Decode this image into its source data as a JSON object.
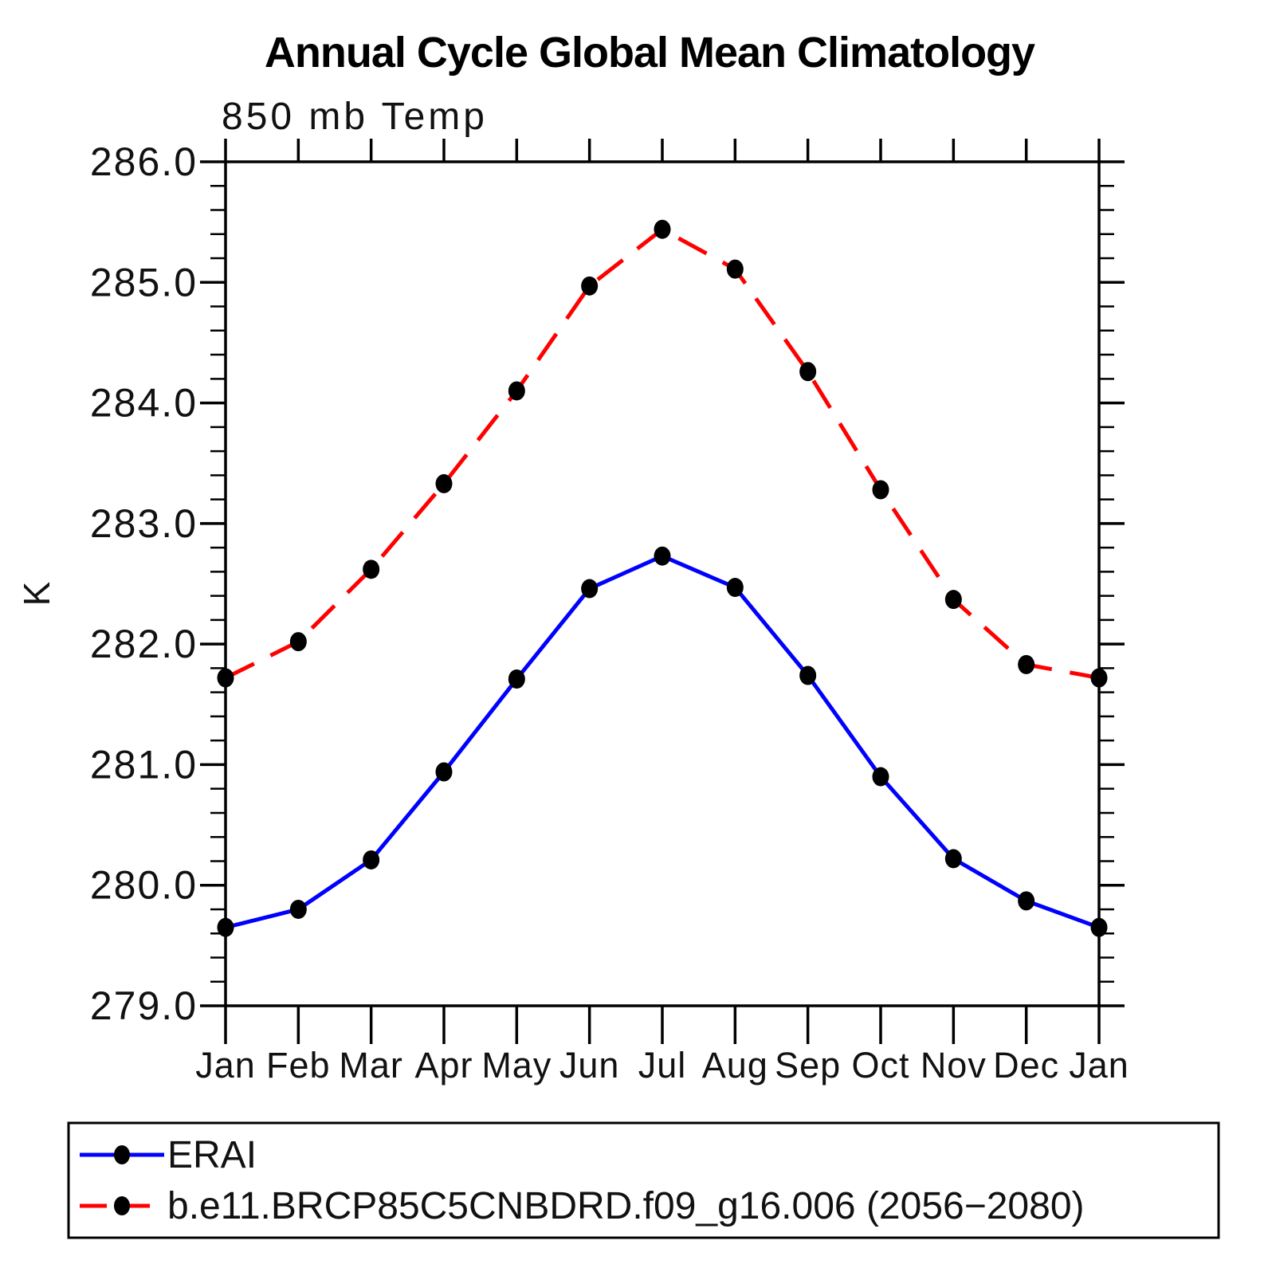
{
  "title": "Annual Cycle Global Mean Climatology",
  "subtitle": "850 mb Temp",
  "y_axis": {
    "title": "K",
    "tick_labels": [
      "286.0",
      "285.0",
      "284.0",
      "283.0",
      "282.0",
      "281.0",
      "280.0",
      "279.0"
    ],
    "minor_step": 0.2
  },
  "x_axis": {
    "tick_labels": [
      "Jan",
      "Feb",
      "Mar",
      "Apr",
      "May",
      "Jun",
      "Jul",
      "Aug",
      "Sep",
      "Oct",
      "Nov",
      "Dec",
      "Jan"
    ]
  },
  "legend": {
    "entries": [
      {
        "label": "ERAI",
        "color": "#0000ff",
        "line_style": "solid",
        "marker": "filled-circle"
      },
      {
        "label": "b.e11.BRCP85C5CNBDRD.f09_g16.006 (2056−2080)",
        "color": "#ff0000",
        "line_style": "dashed",
        "marker": "filled-circle"
      }
    ]
  },
  "chart_data": {
    "type": "line",
    "title": "850 mb Temp",
    "suptitle": "Annual Cycle Global Mean Climatology",
    "ylabel": "K",
    "ylim": [
      279.0,
      286.0
    ],
    "y_major_step": 1.0,
    "y_minor_step": 0.2,
    "grid": false,
    "legend_position": "bottom",
    "categories": [
      "Jan",
      "Feb",
      "Mar",
      "Apr",
      "May",
      "Jun",
      "Jul",
      "Aug",
      "Sep",
      "Oct",
      "Nov",
      "Dec",
      "Jan"
    ],
    "series": [
      {
        "name": "ERAI",
        "color": "#0000ff",
        "line_style": "solid",
        "marker": "filled-circle",
        "marker_color": "#000000",
        "values": [
          279.65,
          279.8,
          280.21,
          280.94,
          281.71,
          282.46,
          282.73,
          282.47,
          281.74,
          280.9,
          280.22,
          279.87,
          279.65
        ]
      },
      {
        "name": "b.e11.BRCP85C5CNBDRD.f09_g16.006 (2056−2080)",
        "color": "#ff0000",
        "line_style": "dashed",
        "marker": "filled-circle",
        "marker_color": "#000000",
        "values": [
          281.72,
          282.02,
          282.62,
          283.33,
          284.1,
          284.97,
          285.44,
          285.11,
          284.26,
          283.28,
          282.37,
          281.83,
          281.72
        ]
      }
    ]
  }
}
